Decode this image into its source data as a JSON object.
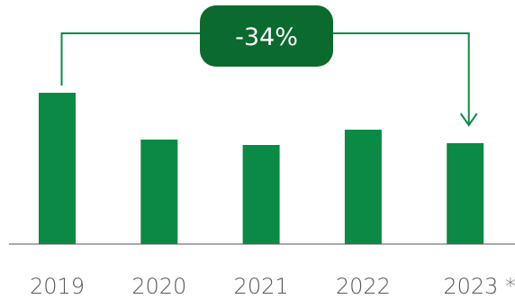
{
  "chart_data": {
    "type": "bar",
    "categories": [
      "2019",
      "2020",
      "2021",
      "2022",
      "2023 *"
    ],
    "values": [
      168,
      116,
      110,
      127,
      112
    ],
    "ylim": [
      0,
      170
    ],
    "grid": false,
    "annotations": [
      {
        "text": "-34%",
        "from": "2019",
        "to": "2023 *"
      }
    ]
  },
  "colors": {
    "bar": "#0a8a44",
    "badge": "#0b6b2f",
    "bracket": "#0a8a44",
    "axis": "#555555",
    "label": "#58595b"
  }
}
